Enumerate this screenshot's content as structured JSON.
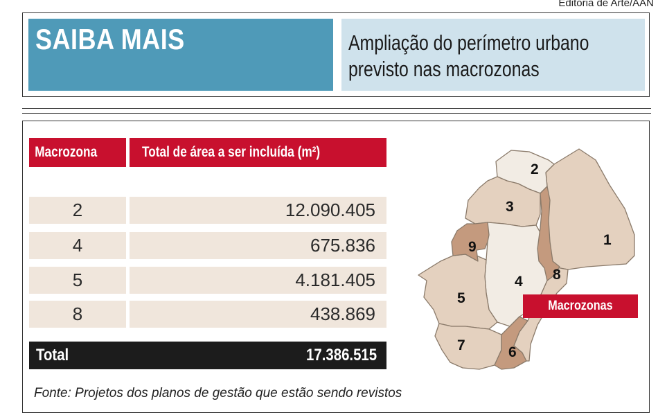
{
  "credit": "Editoria de Arte/AAN",
  "header": {
    "title": "SAIBA MAIS",
    "subtitle_line1": "Ampliação do perímetro urbano",
    "subtitle_line2": "previsto nas macrozonas"
  },
  "table": {
    "columns": [
      "Macrozona",
      "Total de área a ser incluída (m²)"
    ],
    "rows": [
      {
        "macrozona": "2",
        "area": "12.090.405"
      },
      {
        "macrozona": "4",
        "area": "675.836"
      },
      {
        "macrozona": "5",
        "area": "4.181.405"
      },
      {
        "macrozona": "8",
        "area": "438.869"
      }
    ],
    "total_label": "Total",
    "total_value": "17.386.515"
  },
  "source": "Fonte: Projetos dos planos de gestão que estão sendo revistos",
  "map": {
    "label": "Macrozonas",
    "zone_numbers": [
      "1",
      "2",
      "3",
      "4",
      "5",
      "6",
      "7",
      "8",
      "9"
    ],
    "colors": {
      "zone_light": "#f2ece4",
      "zone_beige": "#e4d1bf",
      "zone_highlight": "#c49a7e",
      "border": "#8a7a6a",
      "accent_red": "#c8102e",
      "header_blue": "#4f9ab8",
      "header_light_blue": "#cfe2ec"
    }
  }
}
